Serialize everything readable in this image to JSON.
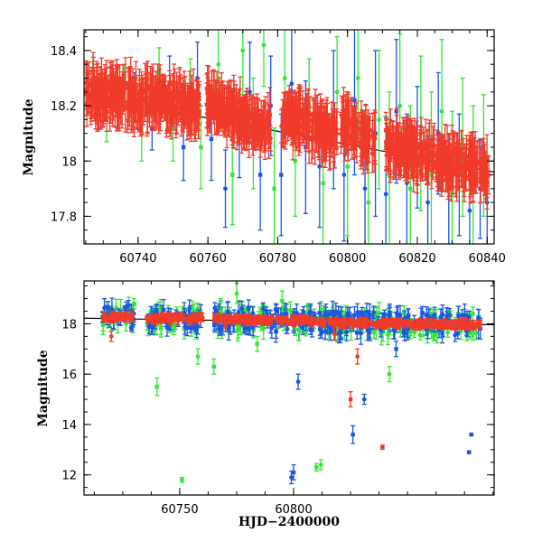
{
  "figure": {
    "background": "#ffffff",
    "series_colors": {
      "green": "#33e633",
      "blue": "#1a55e6",
      "red": "#f03a2a"
    }
  },
  "chart_data": [
    {
      "type": "scatter",
      "panel": "top",
      "title": "",
      "xlabel": "",
      "ylabel": "Magnitude",
      "xlim": [
        60724.5,
        60842
      ],
      "ylim": [
        18.475,
        17.7
      ],
      "y_inverted": true,
      "xticks": [
        60740,
        60760,
        60780,
        60800,
        60820,
        60840
      ],
      "yticks": [
        17.8,
        18,
        18.2,
        18.4
      ],
      "ytick_labels": [
        "17.8",
        "18",
        "18.2",
        "18.4"
      ],
      "trend_line": {
        "x": [
          60724.5,
          60842
        ],
        "y": [
          18.24,
          17.96
        ]
      },
      "series": [
        {
          "color_key": "green",
          "x": [
            60727,
            60731,
            60736,
            60741,
            60746,
            60750,
            60755,
            60758,
            60763,
            60767,
            60770,
            60773,
            60776,
            60779,
            60782,
            60785,
            60789,
            60793,
            60797,
            60800,
            60803,
            60806,
            60809,
            60812,
            60815,
            60818,
            60821,
            60824,
            60827,
            60830,
            60833,
            60836,
            60839
          ],
          "y": [
            18.3,
            18.15,
            18.28,
            18.1,
            18.32,
            18.12,
            18.26,
            18.05,
            18.35,
            17.95,
            18.4,
            18.1,
            18.42,
            17.9,
            18.3,
            18.0,
            18.2,
            17.92,
            18.25,
            17.98,
            18.3,
            17.85,
            18.15,
            17.95,
            18.2,
            17.9,
            18.1,
            17.95,
            18.18,
            17.88,
            18.05,
            17.92,
            18.02
          ],
          "err": [
            0.06,
            0.08,
            0.07,
            0.1,
            0.09,
            0.12,
            0.11,
            0.15,
            0.14,
            0.18,
            0.16,
            0.2,
            0.15,
            0.22,
            0.18,
            0.2,
            0.17,
            0.22,
            0.2,
            0.25,
            0.22,
            0.28,
            0.25,
            0.3,
            0.26,
            0.3,
            0.28,
            0.3,
            0.26,
            0.3,
            0.25,
            0.28,
            0.22
          ]
        },
        {
          "color_key": "blue",
          "x": [
            60729,
            60734,
            60739,
            60744,
            60749,
            60753,
            60757,
            60761,
            60765,
            60769,
            60772,
            60775,
            60778,
            60781,
            60784,
            60788,
            60792,
            60796,
            60799,
            60802,
            60805,
            60808,
            60811,
            60814,
            60817,
            60820,
            60823,
            60826,
            60829,
            60832,
            60835,
            60838,
            60840
          ],
          "y": [
            18.22,
            18.18,
            18.25,
            18.12,
            18.28,
            18.05,
            18.3,
            18.08,
            17.9,
            18.1,
            18.25,
            17.95,
            18.2,
            17.95,
            18.28,
            18.05,
            17.98,
            18.15,
            17.95,
            18.22,
            17.9,
            18.1,
            17.88,
            18.18,
            17.92,
            18.05,
            17.85,
            18.1,
            17.9,
            17.95,
            17.82,
            17.9,
            17.85
          ],
          "err": [
            0.05,
            0.06,
            0.07,
            0.08,
            0.1,
            0.12,
            0.13,
            0.15,
            0.14,
            0.16,
            0.18,
            0.2,
            0.18,
            0.22,
            0.2,
            0.24,
            0.22,
            0.25,
            0.24,
            0.27,
            0.25,
            0.3,
            0.28,
            0.26,
            0.25,
            0.22,
            0.24,
            0.22,
            0.2,
            0.22,
            0.2,
            0.18,
            0.16
          ]
        }
      ],
      "dense_series": {
        "color_key": "red",
        "segments": [
          {
            "x": [
              60725,
              60757.5
            ],
            "y": [
              18.25,
              18.2
            ]
          },
          {
            "x": [
              60759.5,
              60778
            ],
            "y": [
              18.22,
              18.12
            ]
          },
          {
            "x": [
              60781,
              60797
            ],
            "y": [
              18.16,
              18.1
            ]
          },
          {
            "x": [
              60798,
              60808
            ],
            "y": [
              18.14,
              18.06
            ]
          },
          {
            "x": [
              60811,
              60840.5
            ],
            "y": [
              18.06,
              17.96
            ]
          }
        ],
        "scatter_mag": 0.05,
        "err": 0.07
      }
    },
    {
      "type": "scatter",
      "panel": "bottom",
      "title": "",
      "xlabel": "HJD−2400000",
      "ylabel": "Magnitude",
      "xlim": [
        60708,
        60888
      ],
      "ylim": [
        19.7,
        11.2
      ],
      "y_inverted": true,
      "xticks": [
        60750,
        60800
      ],
      "yticks": [
        12,
        14,
        16,
        18
      ],
      "ytick_labels": [
        "12",
        "14",
        "16",
        "18"
      ],
      "trend_line": {
        "x": [
          60708,
          60888
        ],
        "y": [
          18.22,
          17.96
        ]
      },
      "series": [
        {
          "color_key": "green",
          "x": [
            60751,
            60810,
            60812,
            60765,
            60768,
            60740,
            60758,
            60795,
            60842,
            60730,
            60775,
            60784
          ],
          "y": [
            11.8,
            12.3,
            12.4,
            16.3,
            18.5,
            15.5,
            16.7,
            18.9,
            16.0,
            18.8,
            19.2,
            17.2
          ],
          "err": [
            0.1,
            0.15,
            0.2,
            0.3,
            0.5,
            0.35,
            0.3,
            0.4,
            0.3,
            0.2,
            0.4,
            0.3
          ]
        },
        {
          "color_key": "blue",
          "x": [
            60799,
            60800,
            60802,
            60826,
            60831,
            60877,
            60878,
            60845
          ],
          "y": [
            11.9,
            12.1,
            15.7,
            13.6,
            15.0,
            12.9,
            13.6,
            17.0
          ],
          "err": [
            0.25,
            0.3,
            0.3,
            0.35,
            0.2,
            0.05,
            0.05,
            0.3
          ]
        },
        {
          "color_key": "red",
          "x": [
            60839,
            60825,
            60828,
            60818,
            60720,
            60770
          ],
          "y": [
            13.1,
            15.0,
            16.7,
            17.6,
            17.5,
            17.9
          ],
          "err": [
            0.08,
            0.3,
            0.3,
            0.25,
            0.2,
            0.2
          ]
        }
      ],
      "dense_series": {
        "color_key": "red",
        "segments": [
          {
            "x": [
              60716,
              60730
            ],
            "y": [
              18.25,
              18.3
            ]
          },
          {
            "x": [
              60735,
              60760
            ],
            "y": [
              18.22,
              18.2
            ]
          },
          {
            "x": [
              60765,
              60810
            ],
            "y": [
              18.2,
              18.1
            ]
          },
          {
            "x": [
              60811,
              60882
            ],
            "y": [
              18.06,
              17.95
            ]
          }
        ],
        "scatter_mag": 0.1,
        "err": 0.12,
        "companion_colors": [
          "green",
          "blue"
        ]
      }
    }
  ]
}
